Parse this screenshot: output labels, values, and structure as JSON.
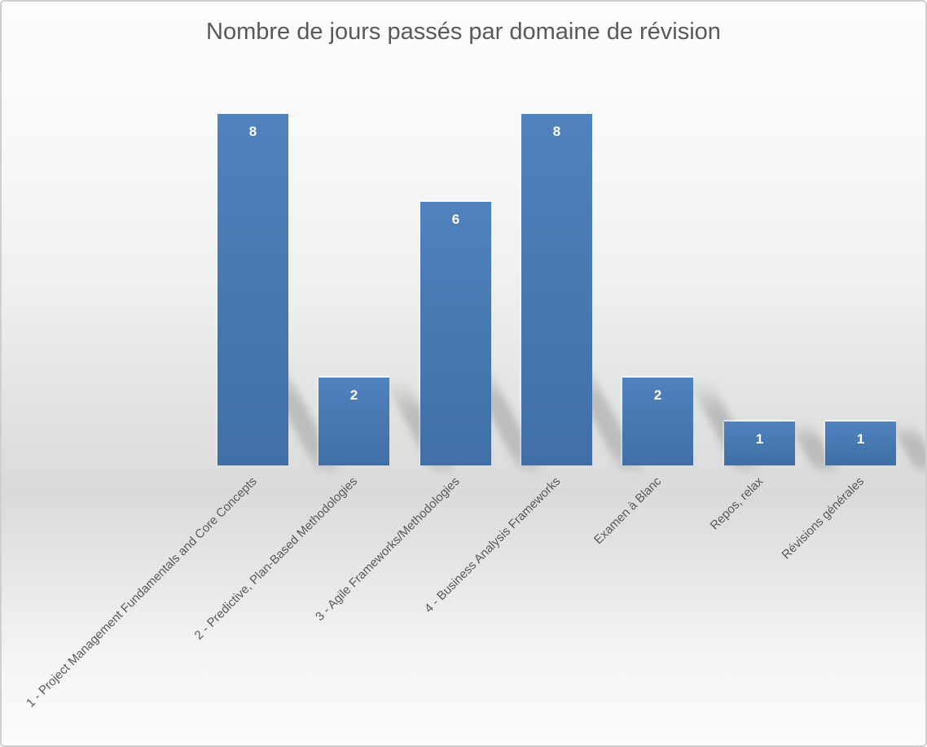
{
  "chart_data": {
    "type": "bar",
    "title": "Nombre de jours passés par domaine de révision",
    "categories": [
      "1 - Project Management Fundamentals and Core Concepts",
      "2 - Predictive, Plan-Based Methodologies",
      "3 - Agile Frameworks/Methodologies",
      "4 - Business Analysis Frameworks",
      "Examen à Blanc",
      "Repos, relax",
      "Révisions générales"
    ],
    "values": [
      8,
      2,
      6,
      8,
      2,
      1,
      1
    ],
    "ylim": [
      0,
      8
    ],
    "xlabel": "",
    "ylabel": "",
    "grid": false,
    "legend": false,
    "data_labels": true,
    "category_label_rotation_deg": 45,
    "colors": {
      "accent": "#4f81bd",
      "bar_top": "#5082bf",
      "bar_bottom": "#3f6fa4",
      "title_text": "#595959",
      "category_text": "#595959",
      "value_label_text": "#ffffff",
      "shadow": "#6e6e6e",
      "frame_border": "#cfcfcf"
    }
  }
}
